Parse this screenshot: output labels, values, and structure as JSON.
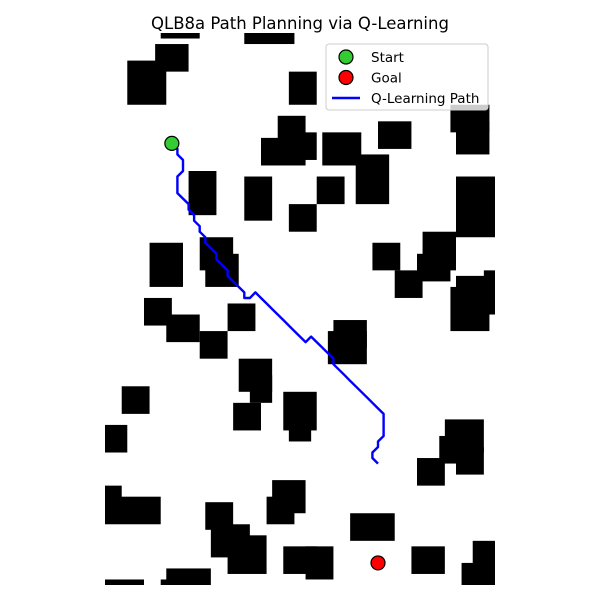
{
  "chart_data": {
    "type": "line",
    "title": "QLB8a Path Planning via Q-Learning",
    "xlabel": "",
    "ylabel": "",
    "xlim": [
      0,
      70
    ],
    "ylim": [
      0,
      100
    ],
    "axes_visible": false,
    "grid": false,
    "legend_position": "upper right",
    "colors": {
      "obstacle": "#000000",
      "start": "#33cc33",
      "goal": "#ff0000",
      "path": "#0000ff",
      "marker_edge": "#000000"
    },
    "obstacles": [
      [
        9,
        98,
        15,
        93
      ],
      [
        10,
        100,
        17,
        99
      ],
      [
        25,
        100,
        34,
        98
      ],
      [
        4,
        95,
        11,
        87
      ],
      [
        33,
        93,
        38,
        87
      ],
      [
        31,
        85,
        36,
        80
      ],
      [
        28,
        81,
        36,
        76
      ],
      [
        33,
        82,
        38,
        77
      ],
      [
        39,
        82,
        46,
        76
      ],
      [
        49,
        84,
        55,
        79
      ],
      [
        62,
        87,
        69,
        82
      ],
      [
        63,
        84,
        69,
        78
      ],
      [
        45,
        78,
        51,
        69
      ],
      [
        38,
        74,
        43,
        69
      ],
      [
        25,
        74,
        30,
        66
      ],
      [
        15,
        75,
        20,
        67
      ],
      [
        33,
        69,
        38,
        64
      ],
      [
        63,
        74,
        70,
        63
      ],
      [
        8,
        62,
        14,
        54
      ],
      [
        17,
        63,
        23,
        57
      ],
      [
        18,
        60,
        24,
        54
      ],
      [
        48,
        62,
        53,
        57
      ],
      [
        57,
        64,
        63,
        57
      ],
      [
        56,
        60,
        62,
        55
      ],
      [
        52,
        57,
        57,
        52
      ],
      [
        63,
        56,
        70,
        49
      ],
      [
        62,
        54,
        69,
        46
      ],
      [
        68,
        57,
        70,
        50
      ],
      [
        7,
        52,
        12,
        47
      ],
      [
        11,
        49,
        17,
        44
      ],
      [
        22,
        51,
        27,
        46
      ],
      [
        17,
        46,
        22,
        41
      ],
      [
        41,
        48,
        47,
        43
      ],
      [
        40,
        46,
        47,
        40
      ],
      [
        24,
        41,
        30,
        35
      ],
      [
        26,
        38,
        30,
        33
      ],
      [
        23,
        33,
        28,
        28
      ],
      [
        32,
        35,
        38,
        28
      ],
      [
        33,
        32,
        37,
        26
      ],
      [
        3,
        36,
        8,
        31
      ],
      [
        0,
        29,
        4,
        24
      ],
      [
        61,
        30,
        68,
        24
      ],
      [
        60,
        27,
        67,
        22
      ],
      [
        63,
        25,
        68,
        20
      ],
      [
        56,
        23,
        61,
        18
      ],
      [
        30,
        19,
        36,
        13
      ],
      [
        29,
        16,
        34,
        11
      ],
      [
        0,
        18,
        3,
        12
      ],
      [
        0,
        16,
        10,
        11
      ],
      [
        18,
        15,
        23,
        10
      ],
      [
        19,
        11,
        26,
        5
      ],
      [
        22,
        9,
        29,
        2
      ],
      [
        44,
        13,
        52,
        8
      ],
      [
        32,
        7,
        38,
        2
      ],
      [
        36,
        7,
        41,
        1
      ],
      [
        55,
        7,
        61,
        2
      ],
      [
        66,
        8,
        70,
        3
      ],
      [
        64,
        4,
        70,
        -1
      ],
      [
        11,
        3,
        19,
        -3
      ],
      [
        10,
        1,
        18,
        -4
      ],
      [
        13,
        -2,
        18,
        -6
      ],
      [
        0,
        1,
        7,
        -4
      ],
      [
        0,
        -1,
        4,
        -6
      ],
      [
        0,
        -4,
        3,
        -9
      ],
      [
        56,
        -1,
        62,
        -6
      ],
      [
        57,
        -3,
        61,
        -9
      ],
      [
        45,
        -11,
        53,
        -14
      ],
      [
        64,
        -11,
        70,
        -14
      ]
    ],
    "start": {
      "x": 12,
      "y": 80
    },
    "goal": {
      "x": 49,
      "y": 4
    },
    "series": [
      {
        "name": "Q-Learning Path",
        "x": [
          12,
          13,
          13,
          14,
          14,
          14,
          13,
          13,
          13,
          14,
          15,
          15,
          16,
          16,
          17,
          17,
          18,
          18,
          19,
          20,
          20,
          21,
          22,
          22,
          23,
          24,
          25,
          25,
          26,
          27,
          28,
          29,
          30,
          31,
          32,
          33,
          34,
          35,
          36,
          37,
          38,
          39,
          40,
          41,
          41,
          42,
          43,
          44,
          45,
          46,
          47,
          48,
          49,
          50,
          50,
          50,
          50,
          49,
          49,
          48,
          48,
          49
        ],
        "y": [
          80,
          79,
          78,
          77,
          76,
          75,
          74,
          73,
          71,
          70,
          69,
          68,
          67,
          66,
          65,
          64,
          63,
          62,
          61,
          60,
          59,
          58,
          57,
          56,
          55,
          54,
          53,
          52,
          52,
          53,
          52,
          51,
          50,
          49,
          48,
          47,
          46,
          45,
          44,
          45,
          44,
          43,
          42,
          41,
          40,
          39,
          38,
          37,
          36,
          35,
          34,
          33,
          32,
          31,
          30,
          28,
          27,
          26,
          25,
          24,
          23,
          22
        ]
      }
    ],
    "legend": [
      {
        "label": "Start",
        "marker": "circle",
        "color": "#33cc33"
      },
      {
        "label": "Goal",
        "marker": "circle",
        "color": "#ff0000"
      },
      {
        "label": "Q-Learning Path",
        "marker": "line",
        "color": "#0000ff"
      }
    ]
  }
}
